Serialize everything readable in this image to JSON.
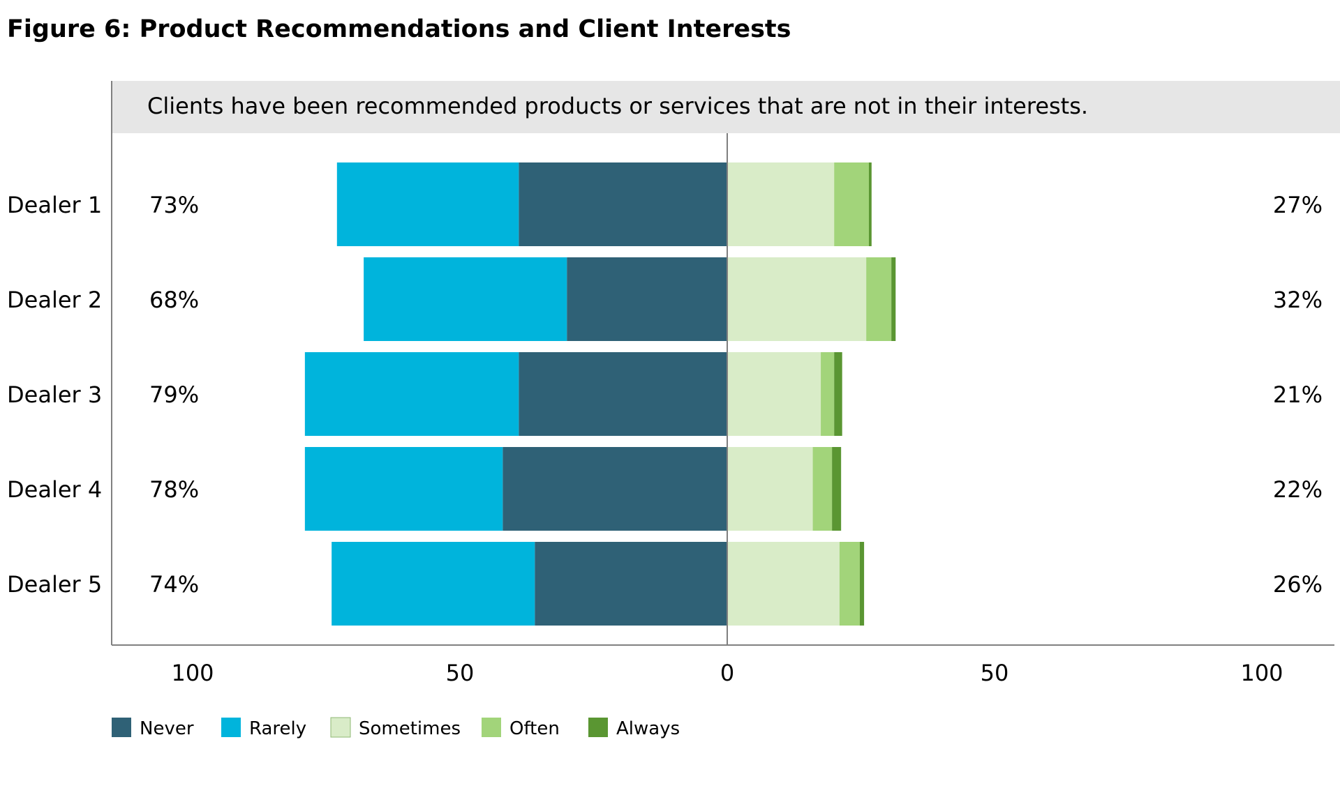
{
  "figure_title": "Figure 6: Product Recommendations and Client Interests",
  "chart_data": {
    "type": "bar",
    "orientation": "horizontal",
    "stacking": "diverging",
    "statement": "Clients have been recommended products or services that are not in their interests.",
    "categories": [
      "Dealer 1",
      "Dealer 2",
      "Dealer 3",
      "Dealer 4",
      "Dealer 5"
    ],
    "left_totals": [
      "73%",
      "68%",
      "79%",
      "78%",
      "74%"
    ],
    "right_totals": [
      "27%",
      "32%",
      "21%",
      "22%",
      "26%"
    ],
    "series": [
      {
        "name": "Never",
        "side": "left",
        "color": "#2f6176",
        "values": [
          39,
          30,
          39,
          42,
          36
        ]
      },
      {
        "name": "Rarely",
        "side": "left",
        "color": "#00b4dc",
        "values": [
          34,
          38,
          40,
          37,
          38
        ]
      },
      {
        "name": "Sometimes",
        "side": "right",
        "color": "#d9ecc8",
        "values": [
          20,
          26,
          17.5,
          16,
          21
        ]
      },
      {
        "name": "Often",
        "side": "right",
        "color": "#a2d47a",
        "values": [
          6.5,
          4.7,
          2.5,
          3.6,
          3.8
        ]
      },
      {
        "name": "Always",
        "side": "right",
        "color": "#5a9632",
        "values": [
          0.5,
          0.8,
          1.5,
          1.7,
          0.8
        ]
      }
    ],
    "xaxis_ticks": [
      "100",
      "50",
      "0",
      "50",
      "100"
    ],
    "xlim": [
      -100,
      100
    ],
    "legend_position": "bottom-left",
    "grid": false
  }
}
